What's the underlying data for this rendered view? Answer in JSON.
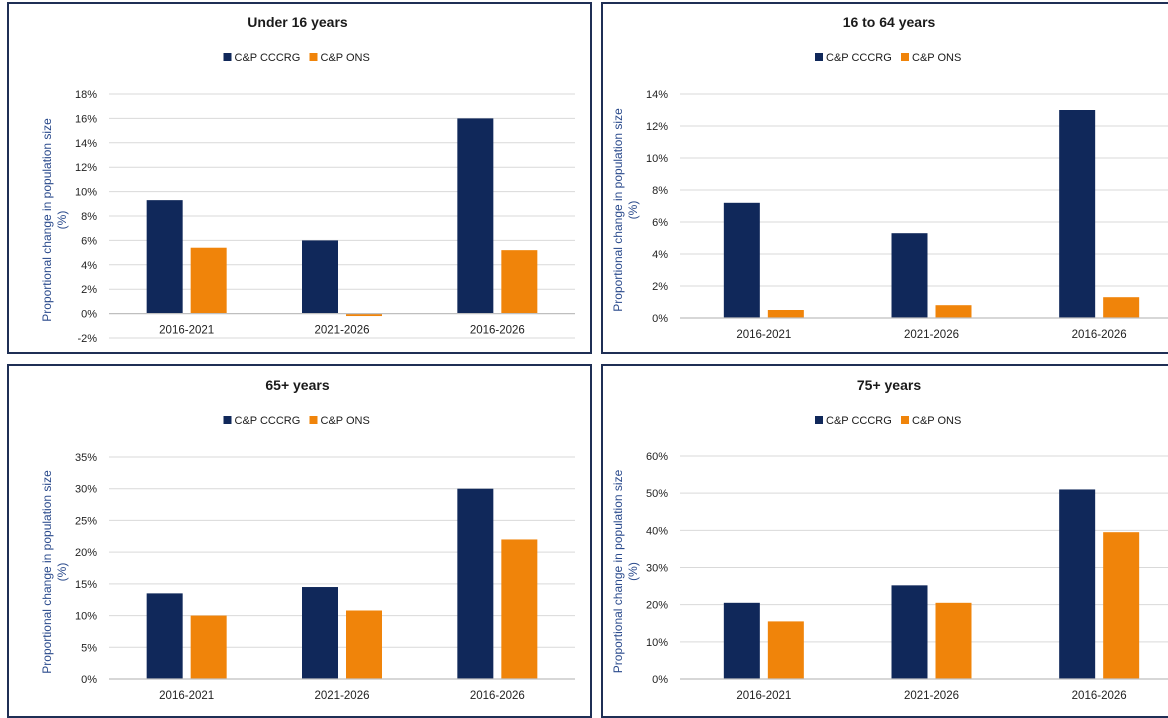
{
  "colors": {
    "cccrg": "#10285a",
    "ons": "#f0840a",
    "grid": "#d9d9d9",
    "axis": "#bfbfbf"
  },
  "chart_data": [
    {
      "type": "bar",
      "title": "Under 16 years",
      "ylabel": "Proportional change in population size (%)",
      "ylabel_lines": [
        "Proportional change in population size",
        "(%)"
      ],
      "categories": [
        "2016-2021",
        "2021-2026",
        "2016-2026"
      ],
      "series": [
        {
          "name": "C&P CCCRG",
          "values": [
            9.3,
            6.0,
            16.0
          ]
        },
        {
          "name": "C&P ONS",
          "values": [
            5.4,
            -0.2,
            5.2
          ]
        }
      ],
      "ylim": [
        -2,
        18
      ],
      "ytick_step": 2,
      "legend": "top",
      "grid": true
    },
    {
      "type": "bar",
      "title": "16 to 64 years",
      "ylabel": "Proportional change in population size (%)",
      "ylabel_lines": [
        "Proportional change in population size",
        "(%)"
      ],
      "categories": [
        "2016-2021",
        "2021-2026",
        "2016-2026"
      ],
      "series": [
        {
          "name": "C&P CCCRG",
          "values": [
            7.2,
            5.3,
            13.0
          ]
        },
        {
          "name": "C&P ONS",
          "values": [
            0.5,
            0.8,
            1.3
          ]
        }
      ],
      "ylim": [
        0,
        14
      ],
      "ytick_step": 2,
      "legend": "top",
      "grid": true
    },
    {
      "type": "bar",
      "title": "65+ years",
      "ylabel": "Proportional change in population size (%)",
      "ylabel_lines": [
        "Proportional change in population size",
        "(%)"
      ],
      "categories": [
        "2016-2021",
        "2021-2026",
        "2016-2026"
      ],
      "series": [
        {
          "name": "C&P CCCRG",
          "values": [
            13.5,
            14.5,
            30.0
          ]
        },
        {
          "name": "C&P ONS",
          "values": [
            10.0,
            10.8,
            22.0
          ]
        }
      ],
      "ylim": [
        0,
        35
      ],
      "ytick_step": 5,
      "legend": "top",
      "grid": true
    },
    {
      "type": "bar",
      "title": "75+ years",
      "ylabel": "Proportional change in population size (%)",
      "ylabel_lines": [
        "Proportional change in population size",
        "(%)"
      ],
      "categories": [
        "2016-2021",
        "2021-2026",
        "2016-2026"
      ],
      "series": [
        {
          "name": "C&P CCCRG",
          "values": [
            20.5,
            25.2,
            51.0
          ]
        },
        {
          "name": "C&P ONS",
          "values": [
            15.5,
            20.5,
            39.5
          ]
        }
      ],
      "ylim": [
        0,
        60
      ],
      "ytick_step": 10,
      "legend": "top",
      "grid": true
    }
  ]
}
